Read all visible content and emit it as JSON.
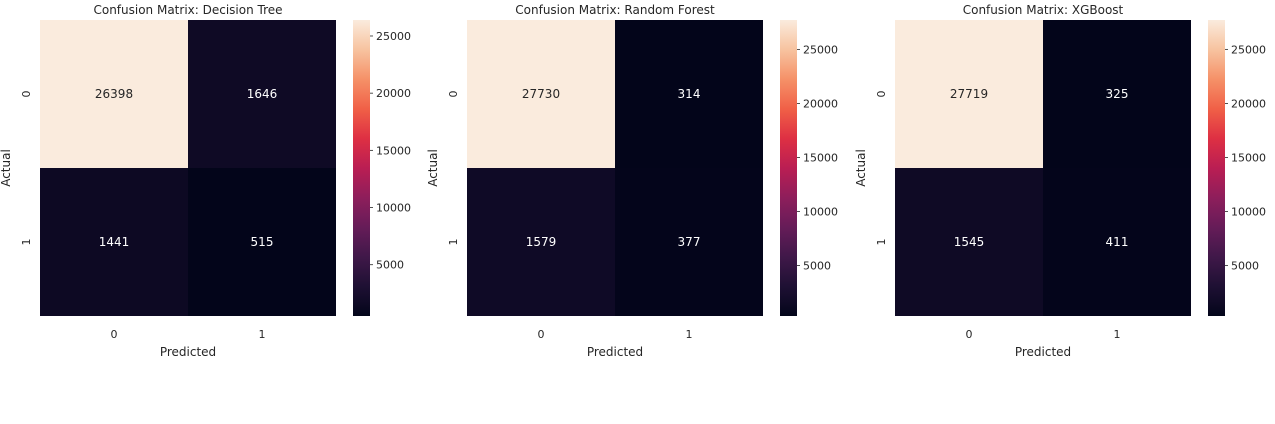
{
  "chart_data": [
    {
      "type": "heatmap",
      "title": "Confusion Matrix: Decision Tree",
      "xlabel": "Predicted",
      "ylabel": "Actual",
      "x_categories": [
        "0",
        "1"
      ],
      "y_categories": [
        "0",
        "1"
      ],
      "values": [
        [
          26398,
          1646
        ],
        [
          1441,
          515
        ]
      ],
      "colorbar": {
        "min": 515,
        "max": 26398,
        "ticks": [
          5000,
          10000,
          15000,
          20000,
          25000
        ],
        "tick_labels": [
          "5000",
          "10000",
          "15000",
          "20000",
          "25000"
        ]
      }
    },
    {
      "type": "heatmap",
      "title": "Confusion Matrix: Random Forest",
      "xlabel": "Predicted",
      "ylabel": "Actual",
      "x_categories": [
        "0",
        "1"
      ],
      "y_categories": [
        "0",
        "1"
      ],
      "values": [
        [
          27730,
          314
        ],
        [
          1579,
          377
        ]
      ],
      "colorbar": {
        "min": 314,
        "max": 27730,
        "ticks": [
          5000,
          10000,
          15000,
          20000,
          25000
        ],
        "tick_labels": [
          "5000",
          "10000",
          "15000",
          "20000",
          "25000"
        ]
      }
    },
    {
      "type": "heatmap",
      "title": "Confusion Matrix: XGBoost",
      "xlabel": "Predicted",
      "ylabel": "Actual",
      "x_categories": [
        "0",
        "1"
      ],
      "y_categories": [
        "0",
        "1"
      ],
      "values": [
        [
          27719,
          325
        ],
        [
          1545,
          411
        ]
      ],
      "colorbar": {
        "min": 325,
        "max": 27719,
        "ticks": [
          5000,
          10000,
          15000,
          20000,
          25000
        ],
        "tick_labels": [
          "5000",
          "10000",
          "15000",
          "20000",
          "25000"
        ]
      }
    }
  ],
  "colormap": "rocket"
}
